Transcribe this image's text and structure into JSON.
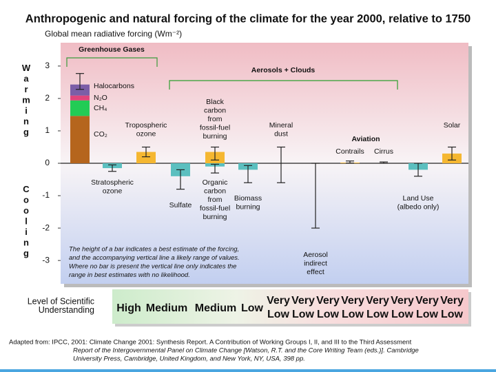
{
  "chart_data": {
    "type": "bar",
    "title": "Anthropogenic and natural forcing of the climate for the year 2000, relative to 1750",
    "y_label": "Global mean radiative forcing (Wm⁻²)",
    "ylim": [
      -3.72,
      3.72
    ],
    "yticks": [
      -3,
      -2,
      -1,
      0,
      1,
      2,
      3
    ],
    "warming": "Warming",
    "cooling": "Cooling",
    "groups": [
      {
        "name": "Greenhouse Gases",
        "color": "#3a9a3a"
      },
      {
        "name": "Aerosols + Clouds",
        "color": "#2e9e2e"
      },
      {
        "name": "Aviation",
        "color": "#111111"
      }
    ],
    "stack": {
      "segments": [
        {
          "name": "CO₂",
          "value": 1.46,
          "color": "#b5651d"
        },
        {
          "name": "CH₄",
          "value": 0.48,
          "color": "#22cc55"
        },
        {
          "name": "N₂O",
          "value": 0.15,
          "color": "#e0457b"
        },
        {
          "name": "Halocarbons",
          "value": 0.34,
          "color": "#7b5ea7"
        }
      ],
      "range": [
        2.28,
        2.77
      ]
    },
    "bars": [
      {
        "label": [
          "Stratospheric",
          "ozone"
        ],
        "value": -0.15,
        "range": [
          -0.05,
          -0.25
        ],
        "color": "#5bbfbf"
      },
      {
        "label": [
          "Tropospheric",
          "ozone"
        ],
        "value": 0.35,
        "range": [
          0.2,
          0.5
        ],
        "color": "#f5b731"
      },
      {
        "label": [
          "Sulfate"
        ],
        "value": -0.4,
        "range": [
          -0.2,
          -0.8
        ],
        "color": "#5bbfbf"
      },
      {
        "label": [
          "Black",
          "carbon",
          "from",
          "fossil-fuel",
          "burning"
        ],
        "value": 0.35,
        "range": [
          0.1,
          0.5
        ],
        "color": "#f5b731"
      },
      {
        "label": [
          "Organic",
          "carbon",
          "from",
          "fossil-fuel",
          "burning"
        ],
        "value": -0.1,
        "range": [
          -0.03,
          -0.3
        ],
        "color": "#5bbfbf"
      },
      {
        "label": [
          "Biomass",
          "burning"
        ],
        "value": -0.2,
        "range": [
          -0.07,
          -0.6
        ],
        "color": "#5bbfbf"
      },
      {
        "label": [
          "Mineral",
          "dust"
        ],
        "value": null,
        "range": [
          0.5,
          -0.6
        ],
        "color": "#5bbfbf"
      },
      {
        "label": [
          "Aerosol",
          "indirect",
          "effect"
        ],
        "value": null,
        "range": [
          0,
          -2
        ],
        "color": "#5bbfbf"
      },
      {
        "label": [
          "Contrails"
        ],
        "value": 0.02,
        "range": [
          0.005,
          0.07
        ],
        "color": "#f5b731"
      },
      {
        "label": [
          "Cirrus"
        ],
        "value": null,
        "range": [
          0,
          0.04
        ],
        "color": "#f5b731"
      },
      {
        "label": [
          "Land Use",
          "(albedo only)"
        ],
        "value": -0.2,
        "range": [
          0,
          -0.4
        ],
        "color": "#5bbfbf"
      },
      {
        "label": [
          "Solar"
        ],
        "value": 0.3,
        "range": [
          0.1,
          0.5
        ],
        "color": "#f5b731"
      }
    ],
    "note": [
      "The height of a bar indicates a best estimate of the forcing,",
      "and the accompanying vertical line a likely range of values.",
      "Where no bar is present the vertical line only indicates the",
      "range in best estimates with no likelihood."
    ],
    "losu": {
      "label": [
        "Level of Scientific",
        "Understanding"
      ],
      "levels": [
        [
          "High"
        ],
        [
          "Medium"
        ],
        [
          "Medium"
        ],
        [
          "Low"
        ],
        [
          "Very",
          "Low"
        ],
        [
          "Very",
          "Low"
        ],
        [
          "Very",
          "Low"
        ],
        [
          "Very",
          "Low"
        ],
        [
          "Very",
          "Low"
        ],
        [
          "Very",
          "Low"
        ],
        [
          "Very",
          "Low"
        ],
        [
          "Very",
          "Low"
        ]
      ]
    },
    "source": [
      "Adapted from: IPCC, 2001:  Climate Change 2001:  Synthesis Report.  A Contribution of Working Groups I, II, and III to the Third Assessment",
      "Report of the Intergovernmental Panel on Climate Change [Watson, R.T. and the Core Writing Team (eds.)].  Cambridge",
      "University Press, Cambridge, United Kingdom, and New York, NY, USA, 398 pp."
    ]
  }
}
